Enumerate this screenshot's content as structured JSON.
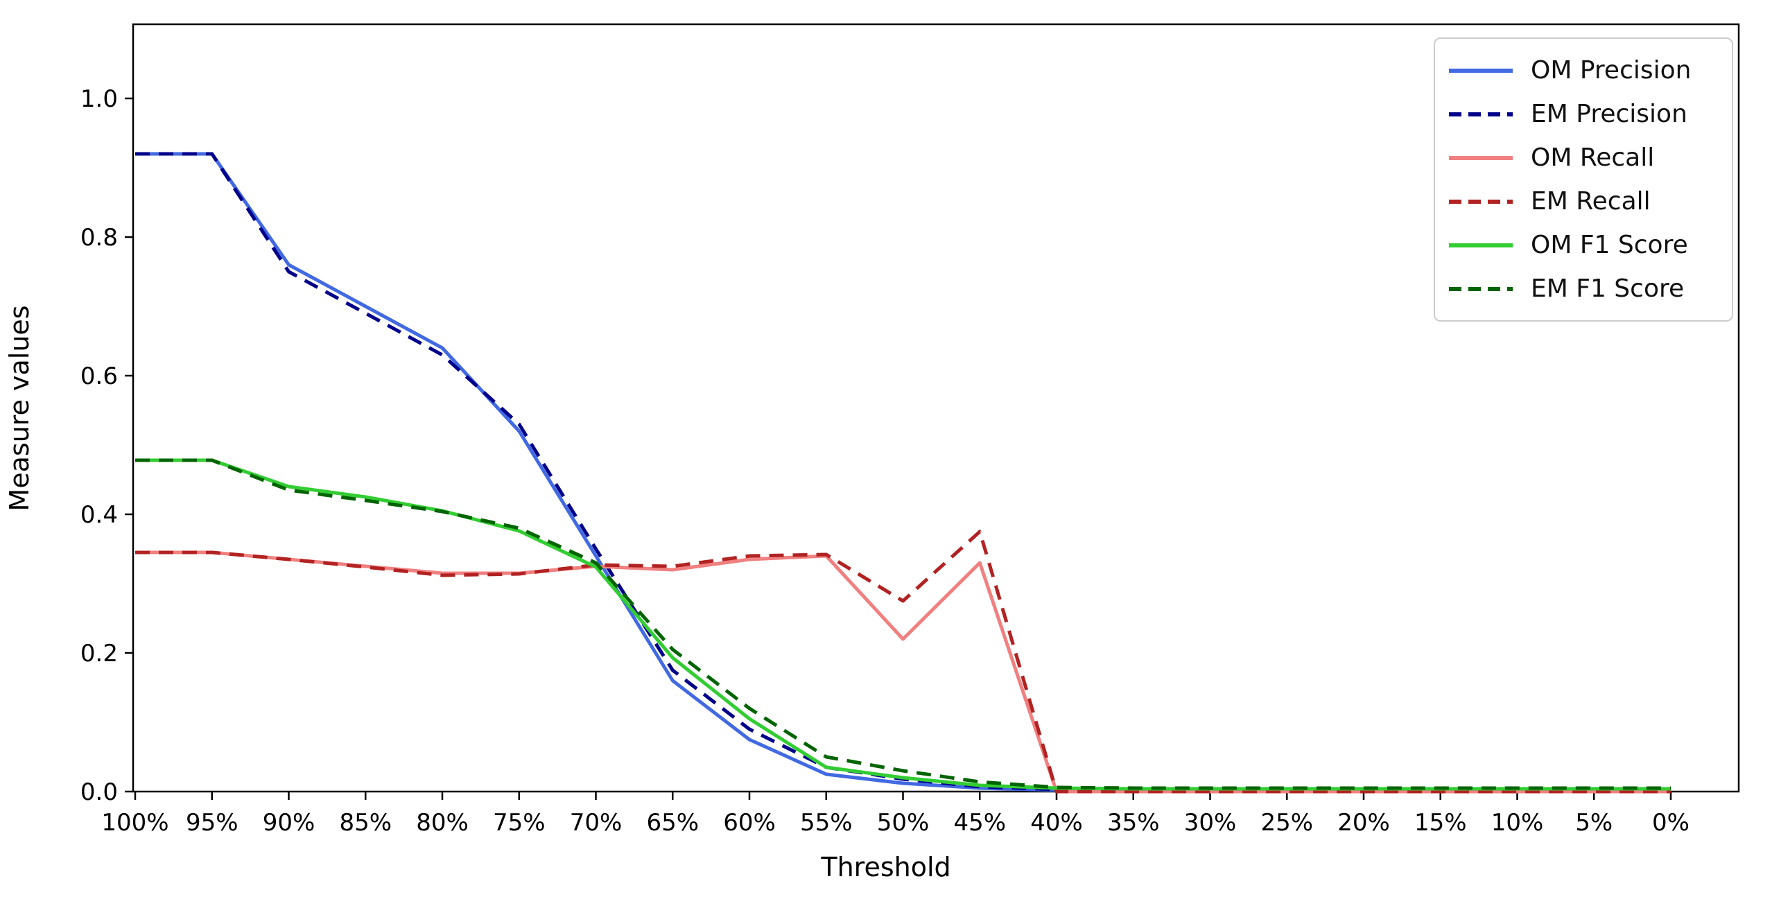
{
  "figure": {
    "background_color": "#ffffff"
  },
  "chart_data": {
    "type": "line",
    "title": "",
    "xlabel": "Threshold",
    "ylabel": "Measure values",
    "categories": [
      "100%",
      "95%",
      "90%",
      "85%",
      "80%",
      "75%",
      "70%",
      "65%",
      "60%",
      "55%",
      "50%",
      "45%",
      "40%",
      "35%",
      "30%",
      "25%",
      "20%",
      "15%",
      "10%",
      "5%",
      "0%"
    ],
    "ytick_labels": [
      "0.0",
      "0.2",
      "0.4",
      "0.6",
      "0.8",
      "1.0"
    ],
    "ytick_values": [
      0.0,
      0.2,
      0.4,
      0.6,
      0.8,
      1.0
    ],
    "ylim": [
      0,
      1.107
    ],
    "grid": false,
    "legend_position": "upper right",
    "axis_color": "#000000",
    "series": [
      {
        "name": "OM Precision",
        "color": "#4169e1",
        "style": "solid",
        "values": [
          0.92,
          0.92,
          0.76,
          0.7,
          0.64,
          0.52,
          0.34,
          0.16,
          0.075,
          0.025,
          0.012,
          0.005,
          0.002,
          0.002,
          0.002,
          0.002,
          0.002,
          0.002,
          0.002,
          0.002,
          0.002
        ]
      },
      {
        "name": "EM Precision",
        "color": "#00008b",
        "style": "dashed",
        "values": [
          0.92,
          0.92,
          0.75,
          0.69,
          0.63,
          0.53,
          0.35,
          0.175,
          0.09,
          0.035,
          0.018,
          0.007,
          0.003,
          0.002,
          0.002,
          0.002,
          0.002,
          0.002,
          0.002,
          0.002,
          0.002
        ]
      },
      {
        "name": "OM Recall",
        "color": "#f08080",
        "style": "solid",
        "values": [
          0.345,
          0.345,
          0.335,
          0.325,
          0.315,
          0.315,
          0.325,
          0.32,
          0.335,
          0.34,
          0.22,
          0.33,
          0.0,
          0.0,
          0.0,
          0.0,
          0.0,
          0.0,
          0.0,
          0.0,
          0.0
        ]
      },
      {
        "name": "EM Recall",
        "color": "#b22222",
        "style": "dashed",
        "values": [
          0.345,
          0.345,
          0.335,
          0.324,
          0.312,
          0.314,
          0.327,
          0.325,
          0.34,
          0.342,
          0.275,
          0.375,
          0.0,
          0.0,
          0.0,
          0.0,
          0.0,
          0.0,
          0.0,
          0.0,
          0.0
        ]
      },
      {
        "name": "OM F1 Score",
        "color": "#32cd32",
        "style": "solid",
        "values": [
          0.478,
          0.478,
          0.44,
          0.425,
          0.405,
          0.376,
          0.324,
          0.193,
          0.105,
          0.035,
          0.02,
          0.009,
          0.005,
          0.004,
          0.004,
          0.004,
          0.004,
          0.004,
          0.004,
          0.004,
          0.004
        ]
      },
      {
        "name": "EM F1 Score",
        "color": "#006400",
        "style": "dashed",
        "values": [
          0.478,
          0.478,
          0.435,
          0.42,
          0.404,
          0.38,
          0.33,
          0.205,
          0.12,
          0.05,
          0.03,
          0.014,
          0.006,
          0.005,
          0.005,
          0.005,
          0.005,
          0.005,
          0.005,
          0.005,
          0.005
        ]
      }
    ]
  }
}
